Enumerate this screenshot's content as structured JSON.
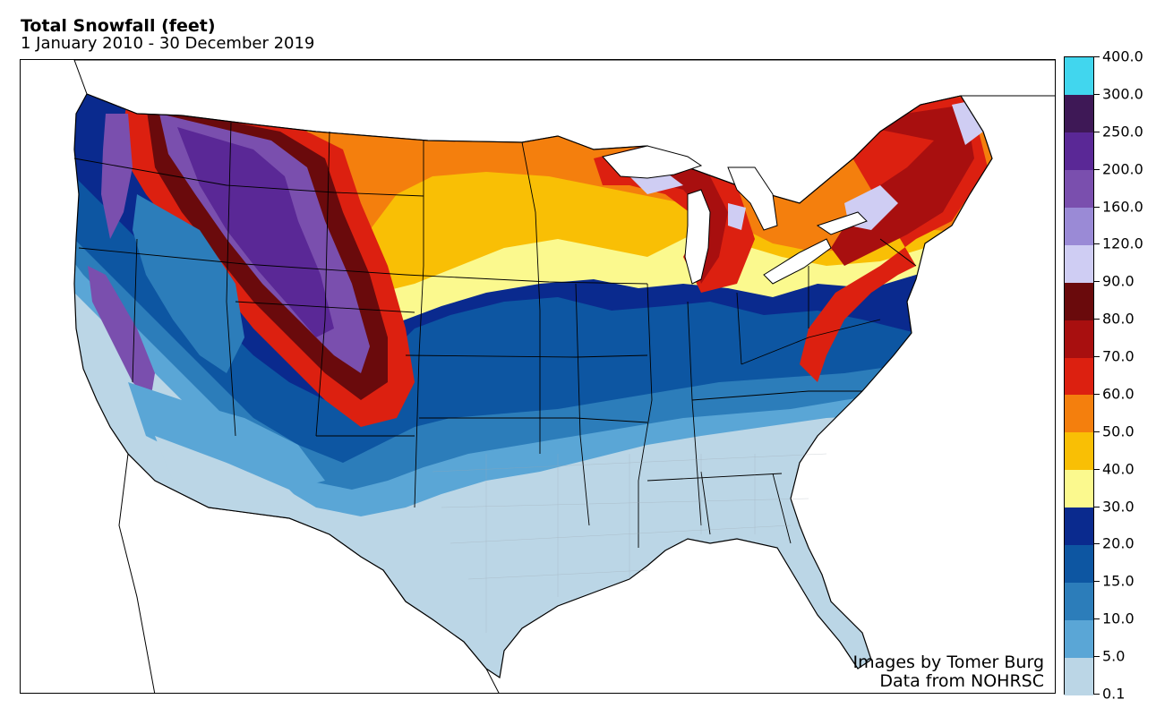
{
  "title": "Total Snowfall (feet)",
  "subtitle": "1 January 2010 - 30 December 2019",
  "credits": {
    "images_by": "Images by Tomer Burg",
    "data_from": "Data from NOHRSC"
  },
  "legend": {
    "ticks": [
      "400.0",
      "300.0",
      "250.0",
      "200.0",
      "160.0",
      "120.0",
      "90.0",
      "80.0",
      "70.0",
      "60.0",
      "50.0",
      "40.0",
      "30.0",
      "20.0",
      "15.0",
      "10.0",
      "5.0",
      "0.1"
    ],
    "colors": [
      "#41d6ee",
      "#3e1856",
      "#5a2896",
      "#7a4fae",
      "#9a8ad6",
      "#cfcdf3",
      "#6a0a0c",
      "#a80f0f",
      "#dc2010",
      "#f47f0d",
      "#f9bf05",
      "#fbf98e",
      "#0a2a8e",
      "#0d56a2",
      "#2c7dba",
      "#5aa6d6",
      "#bbd6e6"
    ]
  },
  "map": {
    "land_color": "#ffffff",
    "border_color": "#000000"
  }
}
